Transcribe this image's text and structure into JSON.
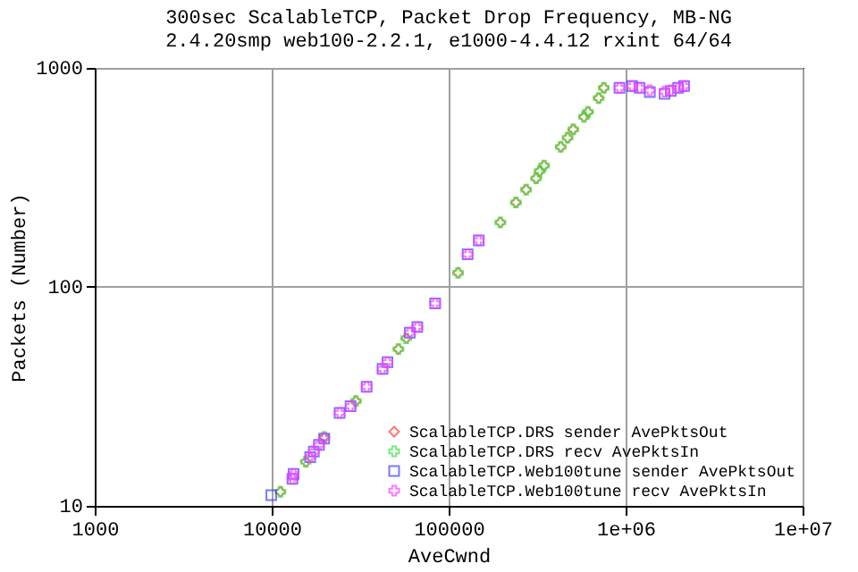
{
  "chart_data": {
    "type": "scatter",
    "title": [
      "300sec ScalableTCP, Packet Drop Frequency, MB-NG",
      "2.4.20smp web100-2.2.1, e1000-4.4.12 rxint 64/64"
    ],
    "xlabel": "AveCwnd",
    "ylabel": "Packets (Number)",
    "log": "xy",
    "grid": true,
    "legend": "bottom right",
    "xlim": [
      1000,
      10000000
    ],
    "xticks": [
      1000,
      10000,
      100000,
      {
        "value": 1000000,
        "label": "1e+06"
      },
      {
        "value": 10000000,
        "label": "1e+07"
      }
    ],
    "ylim": [
      10,
      1000
    ],
    "yticks": [
      10,
      100,
      1000
    ],
    "series": [
      {
        "name": "ScalableTCP.DRS sender AvePktsOut",
        "color": "#ff4040",
        "marker": "diamond",
        "x": [
          11200,
          15600,
          19800,
          29900,
          52000,
          57600,
          113000,
          196000,
          240000,
          274000,
          312000,
          327000,
          346000,
          430000,
          470000,
          506000,
          582000,
          613000,
          704000,
          753000
        ],
        "values": [
          11.6,
          15.9,
          20.6,
          30.1,
          52,
          58.3,
          116,
          197,
          243,
          278,
          313,
          338,
          358,
          436,
          480,
          524,
          598,
          630,
          728,
          811
        ]
      },
      {
        "name": "ScalableTCP.DRS recv AvePktsIn",
        "color": "#40e040",
        "marker": "cross",
        "x": [
          11200,
          15600,
          19800,
          29900,
          52000,
          57600,
          113000,
          196000,
          240000,
          274000,
          312000,
          327000,
          346000,
          430000,
          470000,
          506000,
          582000,
          613000,
          704000,
          753000
        ],
        "values": [
          11.6,
          15.9,
          20.6,
          30.1,
          52,
          58.3,
          116,
          197,
          243,
          278,
          313,
          338,
          358,
          436,
          480,
          524,
          598,
          630,
          728,
          811
        ]
      },
      {
        "name": "ScalableTCP.Web100tune sender AvePktsOut",
        "color": "#4040ff",
        "marker": "square",
        "x": [
          9950,
          13100,
          13300,
          16500,
          17300,
          18500,
          19800,
          24200,
          27900,
          34400,
          42300,
          45100,
          60300,
          66500,
          83900,
          128000,
          148000,
          923000,
          1090000,
          1200000,
          1370000,
          1660000,
          1800000,
          1980000,
          2140000
        ],
        "values": [
          11.2,
          13.3,
          14,
          16.7,
          17.7,
          19,
          20.3,
          26.6,
          28.5,
          35,
          42.2,
          45.3,
          61.8,
          65.6,
          84,
          141,
          163,
          811,
          827,
          811,
          776,
          762,
          785,
          811,
          827
        ]
      },
      {
        "name": "ScalableTCP.Web100tune recv AvePktsIn",
        "color": "#ff40ff",
        "marker": "cross",
        "x": [
          13100,
          13300,
          16500,
          17300,
          18500,
          19800,
          24200,
          27900,
          34400,
          42300,
          45100,
          60300,
          66500,
          83900,
          128000,
          148000,
          923000,
          1090000,
          1200000,
          1370000,
          1660000,
          1800000,
          1980000,
          2140000
        ],
        "values": [
          13.3,
          14,
          16.7,
          17.7,
          19,
          20.3,
          26.6,
          28.5,
          35,
          42.2,
          45.3,
          61.8,
          65.6,
          84,
          141,
          163,
          811,
          827,
          811,
          790,
          780,
          790,
          811,
          827
        ]
      }
    ]
  }
}
